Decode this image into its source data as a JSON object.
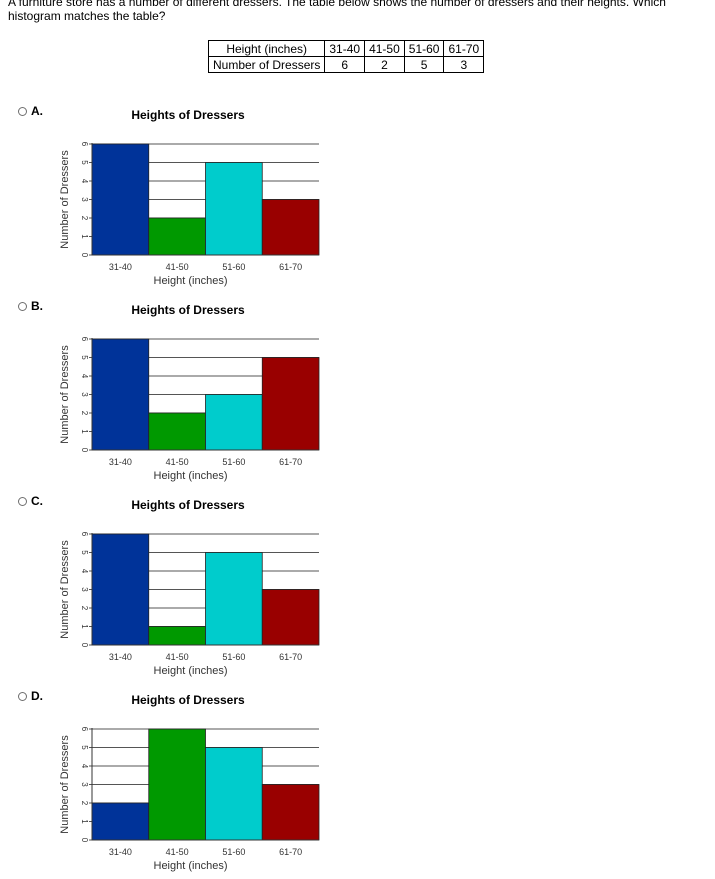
{
  "question": {
    "text": "A furniture store has a number of different dressers. The table below shows the number of dressers and their heights. Which histogram matches the table?"
  },
  "table": {
    "headers": [
      "Height (inches)",
      "31-40",
      "41-50",
      "51-60",
      "61-70"
    ],
    "row": [
      "Number of Dressers",
      "6",
      "2",
      "5",
      "3"
    ]
  },
  "options": [
    {
      "label": "A."
    },
    {
      "label": "B."
    },
    {
      "label": "C."
    },
    {
      "label": "D."
    }
  ],
  "colors": {
    "bars": [
      "#003399",
      "#009900",
      "#00cccc",
      "#990000"
    ]
  },
  "chart_data": [
    {
      "type": "bar",
      "title": "Heights of Dressers",
      "categories": [
        "31-40",
        "41-50",
        "51-60",
        "61-70"
      ],
      "values": [
        6,
        2,
        5,
        3
      ],
      "xlabel": "Height (inches)",
      "ylabel": "Number of Dressers",
      "ylim": [
        0,
        6
      ],
      "yticks": [
        "0",
        "1",
        "2",
        "3",
        "4",
        "5",
        "6"
      ],
      "grid": true
    },
    {
      "type": "bar",
      "title": "Heights of Dressers",
      "categories": [
        "31-40",
        "41-50",
        "51-60",
        "61-70"
      ],
      "values": [
        6,
        2,
        3,
        5
      ],
      "xlabel": "Height (inches)",
      "ylabel": "Number of Dressers",
      "ylim": [
        0,
        6
      ],
      "yticks": [
        "0",
        "1",
        "2",
        "3",
        "4",
        "5",
        "6"
      ],
      "grid": true
    },
    {
      "type": "bar",
      "title": "Heights of Dressers",
      "categories": [
        "31-40",
        "41-50",
        "51-60",
        "61-70"
      ],
      "values": [
        6,
        1,
        5,
        3
      ],
      "xlabel": "Height (inches)",
      "ylabel": "Number of Dressers",
      "ylim": [
        0,
        6
      ],
      "yticks": [
        "0",
        "1",
        "2",
        "3",
        "4",
        "5",
        "6"
      ],
      "grid": true
    },
    {
      "type": "bar",
      "title": "Heights of Dressers",
      "categories": [
        "31-40",
        "41-50",
        "51-60",
        "61-70"
      ],
      "values": [
        2,
        6,
        5,
        3
      ],
      "xlabel": "Height (inches)",
      "ylabel": "Number of Dressers",
      "ylim": [
        0,
        6
      ],
      "yticks": [
        "0",
        "1",
        "2",
        "3",
        "4",
        "5",
        "6"
      ],
      "grid": true
    }
  ]
}
